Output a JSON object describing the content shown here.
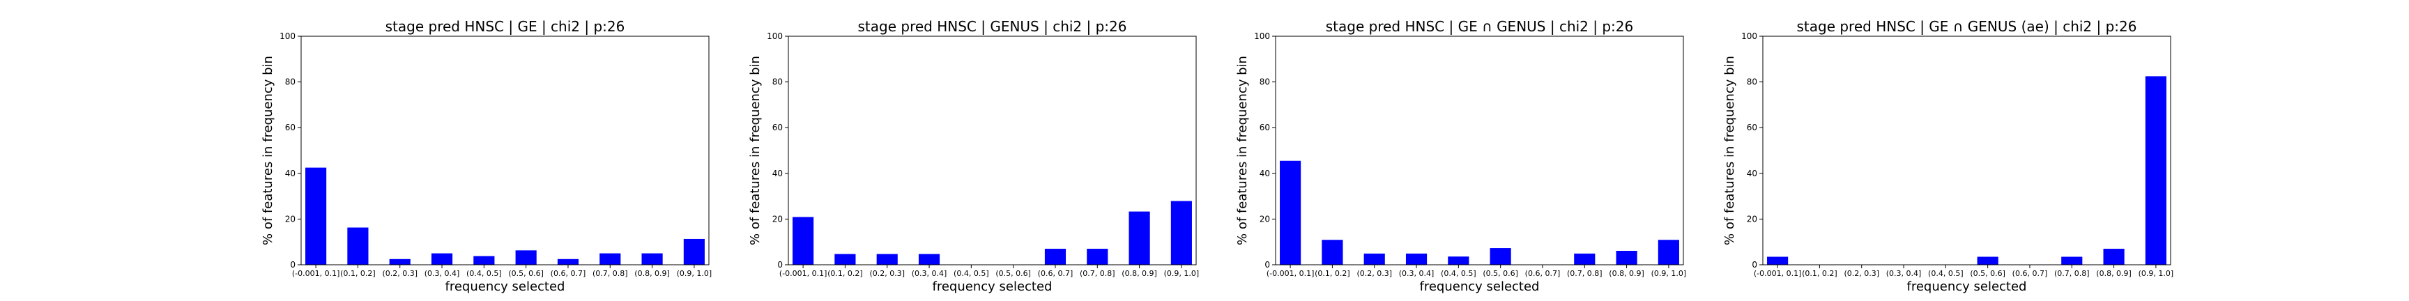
{
  "chart_data": [
    {
      "type": "bar",
      "title": "stage pred HNSC | GE | chi2 | p:26",
      "xlabel": "frequency selected",
      "ylabel": "% of features in frequency bin",
      "categories": [
        "(-0.001, 0.1]",
        "(0.1, 0.2]",
        "(0.2, 0.3]",
        "(0.3, 0.4]",
        "(0.4, 0.5]",
        "(0.5, 0.6]",
        "(0.6, 0.7]",
        "(0.7, 0.8]",
        "(0.8, 0.9]",
        "(0.9, 1.0]"
      ],
      "values": [
        42.5,
        16.3,
        2.5,
        5.0,
        3.8,
        6.3,
        2.5,
        5.0,
        5.0,
        11.3
      ],
      "ylim": [
        0,
        100
      ],
      "yticks": [
        0,
        20,
        40,
        60,
        80,
        100
      ],
      "color": "#0000ff"
    },
    {
      "type": "bar",
      "title": "stage pred HNSC | GENUS | chi2 | p:26",
      "xlabel": "frequency selected",
      "ylabel": "% of features in frequency bin",
      "categories": [
        "(-0.001, 0.1]",
        "(0.1, 0.2]",
        "(0.2, 0.3]",
        "(0.3, 0.4]",
        "(0.4, 0.5]",
        "(0.5, 0.6]",
        "(0.6, 0.7]",
        "(0.7, 0.8]",
        "(0.8, 0.9]",
        "(0.9, 1.0]"
      ],
      "values": [
        20.9,
        4.7,
        4.7,
        4.7,
        0,
        0,
        7.0,
        7.0,
        23.3,
        27.9
      ],
      "ylim": [
        0,
        100
      ],
      "yticks": [
        0,
        20,
        40,
        60,
        80,
        100
      ],
      "color": "#0000ff"
    },
    {
      "type": "bar",
      "title": "stage pred HNSC | GE ∩ GENUS | chi2 | p:26",
      "xlabel": "frequency selected",
      "ylabel": "% of features in frequency bin",
      "categories": [
        "(-0.001, 0.1]",
        "(0.1, 0.2]",
        "(0.2, 0.3]",
        "(0.3, 0.4]",
        "(0.4, 0.5]",
        "(0.5, 0.6]",
        "(0.6, 0.7]",
        "(0.7, 0.8]",
        "(0.8, 0.9]",
        "(0.9, 1.0]"
      ],
      "values": [
        45.5,
        10.9,
        4.9,
        4.9,
        3.6,
        7.3,
        0,
        4.9,
        6.1,
        10.9
      ],
      "ylim": [
        0,
        100
      ],
      "yticks": [
        0,
        20,
        40,
        60,
        80,
        100
      ],
      "color": "#0000ff"
    },
    {
      "type": "bar",
      "title": "stage pred HNSC | GE ∩ GENUS (ae) | chi2 | p:26",
      "xlabel": "frequency selected",
      "ylabel": "% of features in frequency bin",
      "categories": [
        "(-0.001, 0.1]",
        "(0.1, 0.2]",
        "(0.2, 0.3]",
        "(0.3, 0.4]",
        "(0.4, 0.5]",
        "(0.5, 0.6]",
        "(0.6, 0.7]",
        "(0.7, 0.8]",
        "(0.8, 0.9]",
        "(0.9, 1.0]"
      ],
      "values": [
        3.5,
        0,
        0,
        0,
        0,
        3.5,
        0,
        3.5,
        7.0,
        82.5
      ],
      "ylim": [
        0,
        100
      ],
      "yticks": [
        0,
        20,
        40,
        60,
        80,
        100
      ],
      "color": "#0000ff"
    }
  ]
}
